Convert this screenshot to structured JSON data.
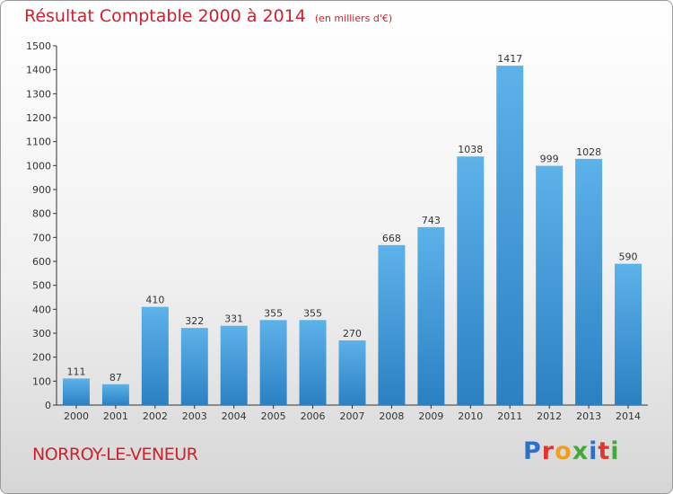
{
  "header": {
    "title": "Résultat Comptable 2000 à 2014",
    "unit": "(en milliers d'€)"
  },
  "footer": {
    "city": "NORROY-LE-VENEUR",
    "logo": "Proxiti",
    "logo_colors": [
      "#2f6fc9",
      "#e3352b",
      "#f0a020",
      "#47a83a",
      "#2f6fc9",
      "#e3352b",
      "#47a83a"
    ]
  },
  "colors": {
    "title": "#d0202e",
    "bar_top": "#5db2ea",
    "bar_bottom": "#2b80c2",
    "axis": "#333333",
    "label": "#333333"
  },
  "chart_data": {
    "type": "bar",
    "title": "Résultat Comptable 2000 à 2014",
    "subtitle": "(en milliers d'€)",
    "categories": [
      "2000",
      "2001",
      "2002",
      "2003",
      "2004",
      "2005",
      "2006",
      "2007",
      "2008",
      "2009",
      "2010",
      "2011",
      "2012",
      "2013",
      "2014"
    ],
    "values": [
      111,
      87,
      410,
      322,
      331,
      355,
      355,
      270,
      668,
      743,
      1038,
      1417,
      999,
      1028,
      590
    ],
    "ylim": [
      0,
      1500
    ],
    "yticks": [
      0,
      100,
      200,
      300,
      400,
      500,
      600,
      700,
      800,
      900,
      1000,
      1100,
      1200,
      1300,
      1400,
      1500
    ],
    "grid": false,
    "data_labels": true
  }
}
